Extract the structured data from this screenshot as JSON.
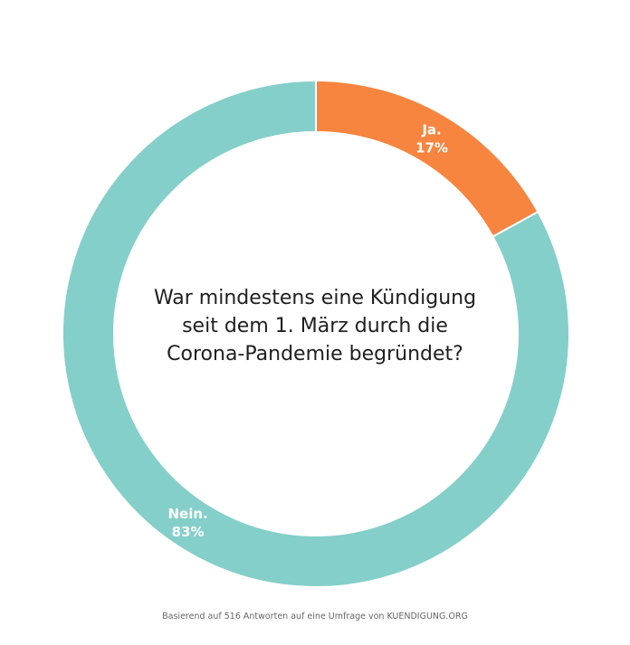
{
  "chart_data": {
    "type": "pie",
    "title": "War mindestens eine Kündigung seit dem 1. März durch die Corona-Pandemie begründet?",
    "title_lines": [
      "War mindestens eine Kündigung",
      "seit dem 1. März durch die",
      "Corona-Pandemie begründet?"
    ],
    "categories": [
      "Ja.",
      "Nein."
    ],
    "values": [
      17,
      83
    ],
    "value_labels": [
      "17%",
      "83%"
    ],
    "colors": [
      "#F7843F",
      "#84CFCA"
    ],
    "donut": true
  },
  "footer": {
    "text": "Basierend auf 516 Antworten auf eine Umfrage von KUENDIGUNG.ORG"
  }
}
